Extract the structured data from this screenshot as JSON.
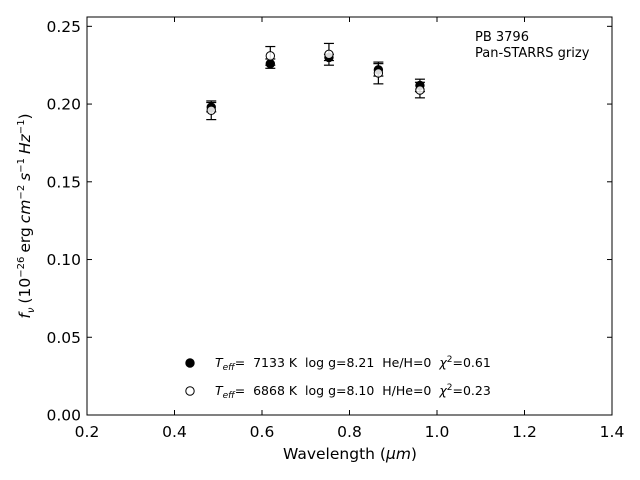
{
  "chart_data": {
    "type": "scatter",
    "xlabel_text": "Wavelength (",
    "xlabel_unit": "μm",
    "xlabel_close": ")",
    "ylabel_sym": "f",
    "ylabel_sub": "ν",
    "ylabel_text": "(10",
    "ylabel_exp1": "−26",
    "ylabel_text2": "erg",
    "ylabel_cm": "cm",
    "ylabel_exp2": "−2",
    "ylabel_s": "s",
    "ylabel_exp3": "−1",
    "ylabel_hz": "Hz",
    "ylabel_exp4": "−1",
    "ylabel_close": ")",
    "xlim": [
      0.2,
      1.4
    ],
    "ylim": [
      0.0,
      0.256
    ],
    "xticks": [
      0.2,
      0.4,
      0.6,
      0.8,
      1.0,
      1.2,
      1.4
    ],
    "xtick_labels": [
      "0.2",
      "0.4",
      "0.6",
      "0.8",
      "1.0",
      "1.2",
      "1.4"
    ],
    "yticks": [
      0.0,
      0.05,
      0.1,
      0.15,
      0.2,
      0.25
    ],
    "ytick_labels": [
      "0.00",
      "0.05",
      "0.10",
      "0.15",
      "0.20",
      "0.25"
    ],
    "grid": false,
    "legend_position": "bottom-center",
    "annotation_lines": [
      "PB 3796",
      "Pan-STARRS grizy"
    ],
    "annotation_position": "top-right",
    "series": [
      {
        "marker": "filled-circle",
        "legend_T": "T",
        "legend_Tsub": "eff",
        "legend_rest": "=  7133 K  log g=8.21  He/H=0  ",
        "legend_chi": "χ",
        "legend_chi_exp": "2",
        "legend_chi_val": "=0.61",
        "x": [
          0.484,
          0.619,
          0.753,
          0.866,
          0.961
        ],
        "y": [
          0.198,
          0.226,
          0.23,
          0.222,
          0.212
        ],
        "yerr": [
          0.003,
          0.003,
          0.002,
          0.004,
          0.004
        ]
      },
      {
        "marker": "open-circle",
        "legend_T": "T",
        "legend_Tsub": "eff",
        "legend_rest": "=  6868 K  log g=8.10  H/He=0  ",
        "legend_chi": "χ",
        "legend_chi_exp": "2",
        "legend_chi_val": "=0.23",
        "x": [
          0.484,
          0.619,
          0.753,
          0.866,
          0.961
        ],
        "y": [
          0.196,
          0.231,
          0.232,
          0.22,
          0.209
        ],
        "yerr": [
          0.006,
          0.006,
          0.007,
          0.007,
          0.005
        ]
      }
    ]
  }
}
